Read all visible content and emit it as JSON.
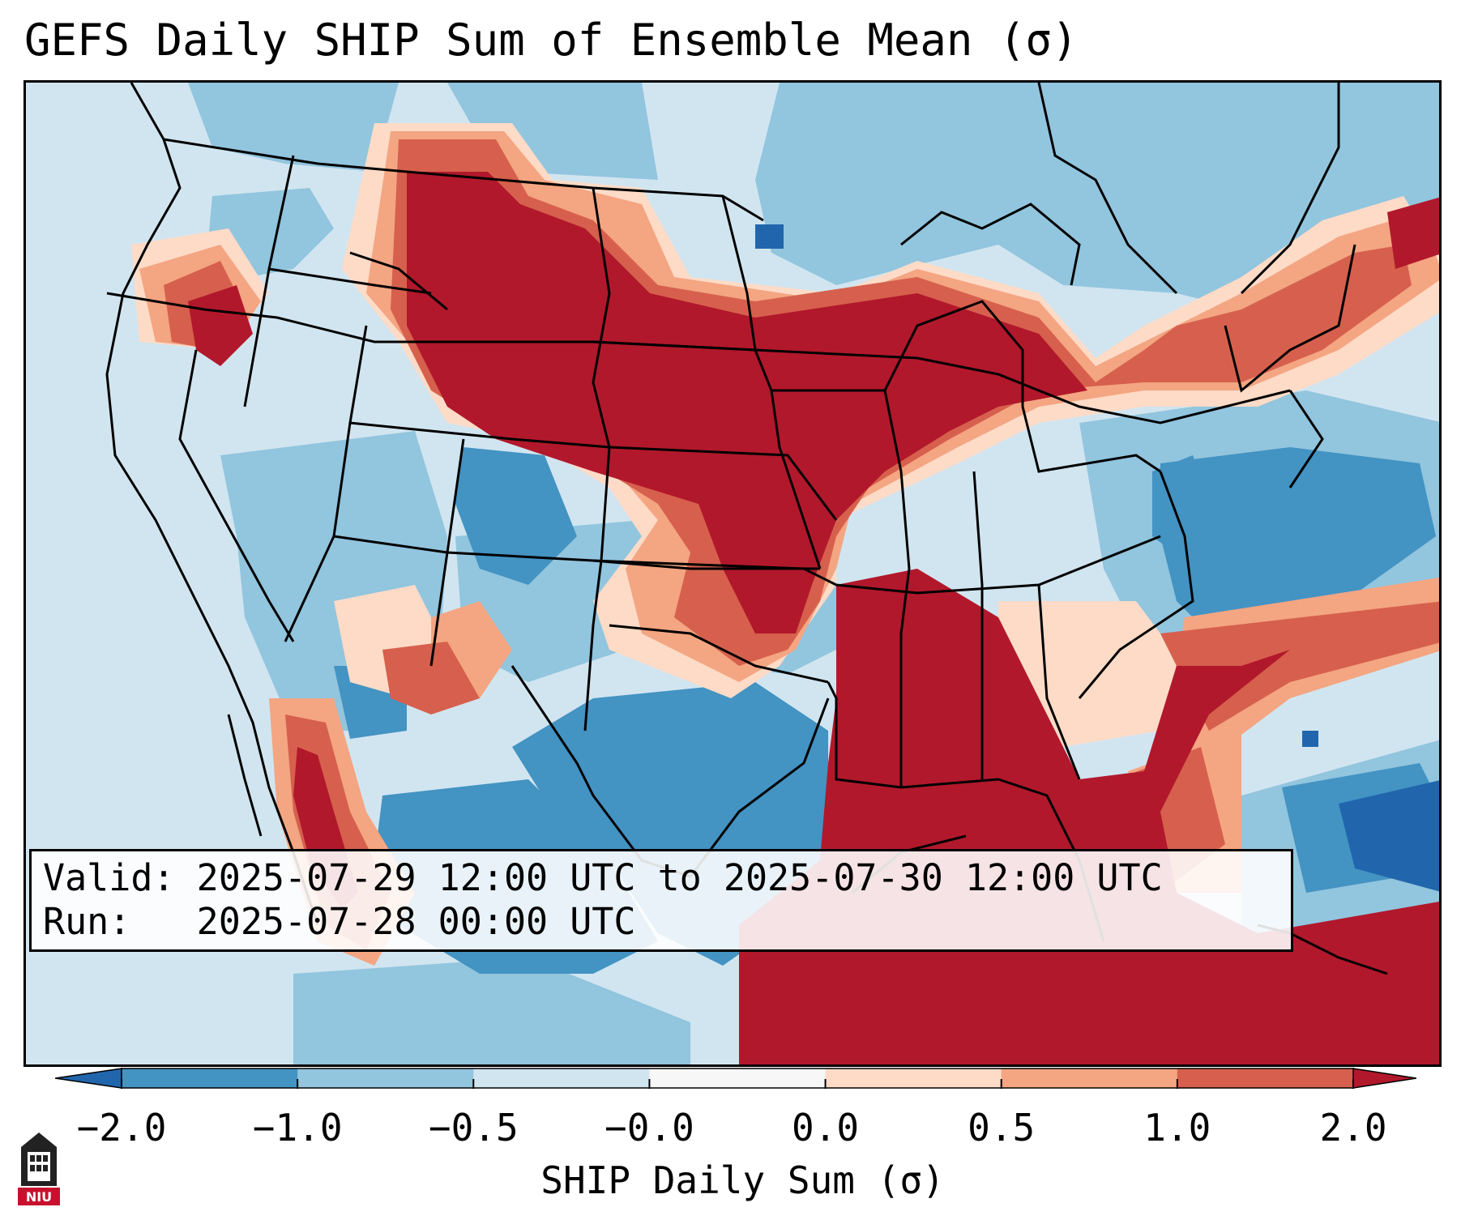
{
  "title": "GEFS Daily SHIP Sum of Ensemble Mean (σ)",
  "info": {
    "valid_line": "Valid: 2025-07-29 12:00 UTC to 2025-07-30 12:00 UTC",
    "run_line": "Run:   2025-07-28 00:00 UTC"
  },
  "colorbar": {
    "label": "SHIP Daily Sum (σ)",
    "ticks": [
      "−2.0",
      "−1.0",
      "−0.5",
      "−0.0",
      "0.0",
      "0.5",
      "1.0",
      "2.0"
    ],
    "colors": [
      "#4393c3",
      "#92c5de",
      "#d1e5f0",
      "#f7f7f7",
      "#fddbc7",
      "#f4a582",
      "#d6604d"
    ],
    "extend_low_color": "#2166ac",
    "extend_high_color": "#b2182b"
  },
  "map": {
    "colors": {
      "strong_negative": "#2166ac",
      "negative": "#4393c3",
      "weak_negative": "#92c5de",
      "slight_negative": "#d1e5f0",
      "neutral": "#f7f7f7",
      "slight_positive": "#fddbc7",
      "weak_positive": "#f4a582",
      "positive": "#d6604d",
      "strong_positive": "#b2182b"
    }
  },
  "logo": {
    "text": "NIU",
    "icon": "university-logo-icon"
  }
}
